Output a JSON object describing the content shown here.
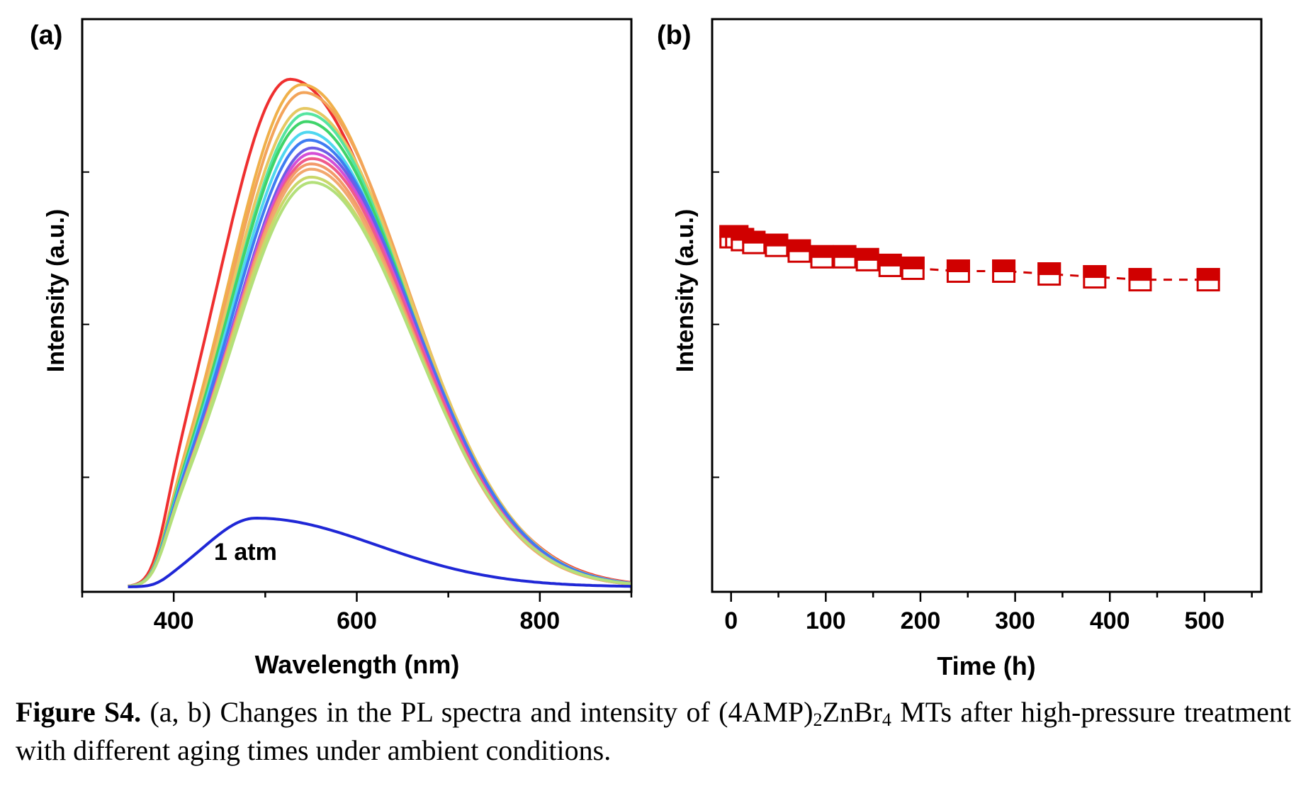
{
  "caption": {
    "label": "Figure S4.",
    "text_before": " (a, b) Changes in the PL spectra and intensity of (4AMP)",
    "sub1": "2",
    "text_mid": "ZnBr",
    "sub2": "4",
    "text_after": " MTs after high-pressure treatment with different aging times under ambient conditions."
  },
  "chart_data": [
    {
      "panel": "(a)",
      "type": "line",
      "xlabel": "Wavelength (nm)",
      "ylabel": "Intensity (a.u.)",
      "xlim": [
        300,
        900
      ],
      "ylim": [
        0,
        1.0
      ],
      "x_ticks": [
        400,
        600,
        800
      ],
      "annotation": "1 atm",
      "series": [
        {
          "color": "#ef2f2f",
          "peak_x": 527,
          "peak_y": 0.96,
          "width": 78,
          "skew": 1.55
        },
        {
          "color": "#f0b04a",
          "peak_x": 540,
          "peak_y": 0.95,
          "width": 80,
          "skew": 1.4
        },
        {
          "color": "#f3a45a",
          "peak_x": 542,
          "peak_y": 0.935,
          "width": 81,
          "skew": 1.4
        },
        {
          "color": "#e6c863",
          "peak_x": 543,
          "peak_y": 0.905,
          "width": 82,
          "skew": 1.4
        },
        {
          "color": "#55e5a0",
          "peak_x": 545,
          "peak_y": 0.895,
          "width": 82,
          "skew": 1.35
        },
        {
          "color": "#3fd46a",
          "peak_x": 545,
          "peak_y": 0.88,
          "width": 83,
          "skew": 1.35
        },
        {
          "color": "#4fd7f0",
          "peak_x": 546,
          "peak_y": 0.86,
          "width": 83,
          "skew": 1.35
        },
        {
          "color": "#3e7cf2",
          "peak_x": 548,
          "peak_y": 0.845,
          "width": 84,
          "skew": 1.35
        },
        {
          "color": "#6d5de6",
          "peak_x": 551,
          "peak_y": 0.83,
          "width": 85,
          "skew": 1.3
        },
        {
          "color": "#d44fd6",
          "peak_x": 551,
          "peak_y": 0.82,
          "width": 85,
          "skew": 1.3
        },
        {
          "color": "#f05a8a",
          "peak_x": 551,
          "peak_y": 0.81,
          "width": 85,
          "skew": 1.3
        },
        {
          "color": "#f39a6a",
          "peak_x": 550,
          "peak_y": 0.8,
          "width": 85,
          "skew": 1.3
        },
        {
          "color": "#f2a86e",
          "peak_x": 550,
          "peak_y": 0.79,
          "width": 85,
          "skew": 1.3
        },
        {
          "color": "#c9d86a",
          "peak_x": 550,
          "peak_y": 0.775,
          "width": 86,
          "skew": 1.3
        },
        {
          "color": "#b3e07a",
          "peak_x": 551,
          "peak_y": 0.765,
          "width": 86,
          "skew": 1.3
        },
        {
          "color": "#1f27d6",
          "peak_x": 490,
          "peak_y": 0.13,
          "width": 55,
          "skew": 2.4
        }
      ]
    },
    {
      "panel": "(b)",
      "type": "scatter",
      "xlabel": "Time (h)",
      "ylabel": "Intensity (a.u.)",
      "xlim": [
        -20,
        560
      ],
      "ylim": [
        0,
        1.0
      ],
      "x_ticks": [
        0,
        100,
        200,
        300,
        400,
        500
      ],
      "marker": "half-filled-square",
      "color": "#d00000",
      "x": [
        0,
        6,
        12,
        24,
        48,
        72,
        96,
        120,
        144,
        168,
        192,
        240,
        288,
        336,
        384,
        432,
        504
      ],
      "y": [
        0.62,
        0.62,
        0.615,
        0.61,
        0.605,
        0.595,
        0.585,
        0.585,
        0.58,
        0.57,
        0.565,
        0.56,
        0.56,
        0.555,
        0.55,
        0.545,
        0.545
      ]
    }
  ]
}
